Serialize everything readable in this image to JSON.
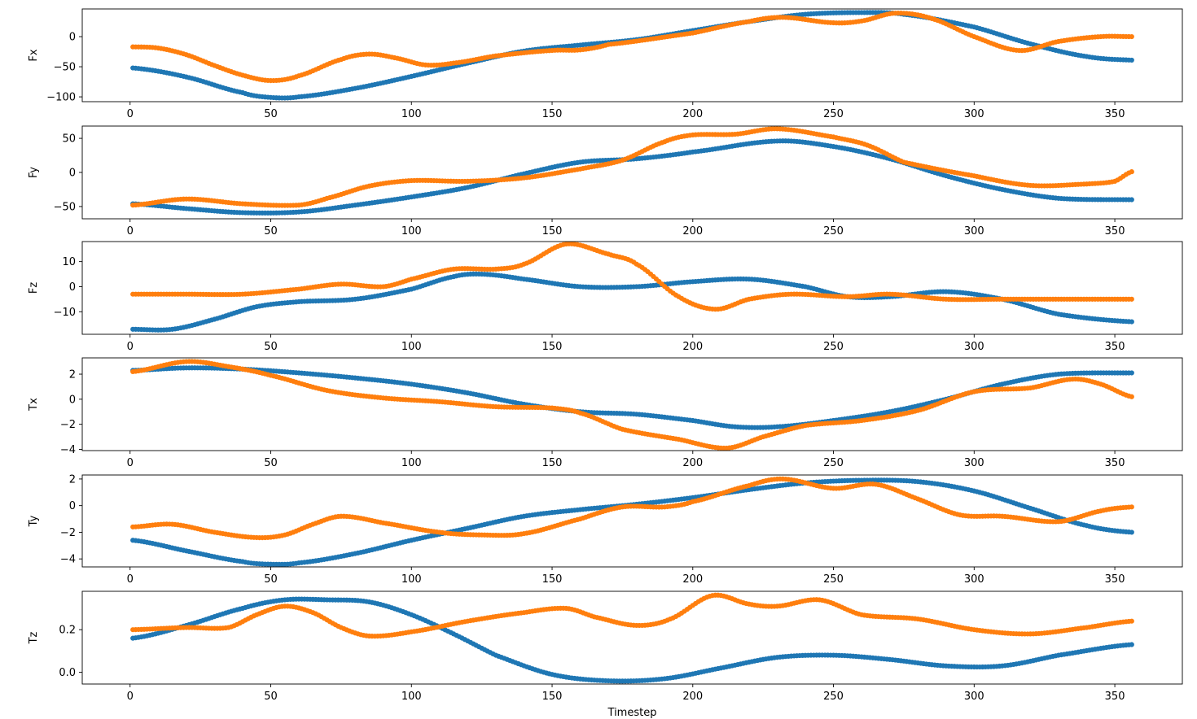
{
  "chart_data": [
    {
      "type": "scatter",
      "ylabel": "Fx",
      "xlabel": "",
      "xlim": [
        -17,
        374
      ],
      "ylim": [
        -108,
        46
      ],
      "xticks": [
        0,
        50,
        100,
        150,
        200,
        250,
        300,
        350
      ],
      "yticks": [
        -100,
        -50,
        0
      ],
      "series": [
        {
          "color": "#1f77b4",
          "x": [
            1,
            20,
            40,
            50,
            60,
            80,
            100,
            120,
            140,
            160,
            180,
            200,
            220,
            240,
            260,
            275,
            300,
            320,
            340,
            356
          ],
          "y": [
            -52,
            -67,
            -93,
            -101,
            -100,
            -86,
            -66,
            -44,
            -24,
            -14,
            -5,
            10,
            25,
            37,
            40,
            37,
            16,
            -12,
            -33,
            -39
          ]
        },
        {
          "color": "#ff7f0e",
          "x": [
            1,
            10,
            20,
            30,
            40,
            50,
            60,
            75,
            85,
            95,
            105,
            115,
            130,
            150,
            160,
            170,
            200,
            220,
            232,
            250,
            260,
            272,
            285,
            300,
            316,
            330,
            345,
            356
          ],
          "y": [
            -17,
            -19,
            -30,
            -48,
            -64,
            -73,
            -65,
            -38,
            -29,
            -36,
            -47,
            -44,
            -32,
            -23,
            -22,
            -13,
            6,
            25,
            32,
            23,
            26,
            39,
            30,
            0,
            -23,
            -8,
            0,
            0
          ]
        }
      ]
    },
    {
      "type": "scatter",
      "ylabel": "Fy",
      "xlabel": "",
      "xlim": [
        -17,
        374
      ],
      "ylim": [
        -68,
        68
      ],
      "xticks": [
        0,
        50,
        100,
        150,
        200,
        250,
        300,
        350
      ],
      "yticks": [
        -50,
        0,
        50
      ],
      "series": [
        {
          "color": "#1f77b4",
          "x": [
            1,
            20,
            40,
            60,
            80,
            100,
            120,
            140,
            160,
            180,
            200,
            230,
            250,
            270,
            290,
            310,
            330,
            356
          ],
          "y": [
            -46,
            -53,
            -59,
            -58,
            -48,
            -36,
            -22,
            -2,
            15,
            20,
            30,
            46,
            38,
            20,
            -5,
            -25,
            -38,
            -40
          ]
        },
        {
          "color": "#ff7f0e",
          "x": [
            1,
            20,
            40,
            60,
            70,
            85,
            100,
            120,
            140,
            160,
            175,
            190,
            200,
            215,
            230,
            250,
            262,
            275,
            300,
            320,
            340,
            350,
            356
          ],
          "y": [
            -48,
            -39,
            -46,
            -48,
            -38,
            -20,
            -12,
            -13,
            -8,
            5,
            18,
            45,
            55,
            56,
            64,
            52,
            40,
            15,
            -5,
            -19,
            -17,
            -13,
            1
          ]
        }
      ]
    },
    {
      "type": "scatter",
      "ylabel": "Fz",
      "xlabel": "",
      "xlim": [
        -17,
        374
      ],
      "ylim": [
        -19,
        18
      ],
      "xticks": [
        0,
        50,
        100,
        150,
        200,
        250,
        300,
        350
      ],
      "yticks": [
        -10,
        0,
        10
      ],
      "series": [
        {
          "color": "#1f77b4",
          "x": [
            1,
            15,
            30,
            45,
            60,
            80,
            100,
            115,
            125,
            140,
            160,
            180,
            200,
            220,
            240,
            255,
            270,
            290,
            310,
            330,
            356
          ],
          "y": [
            -17,
            -17,
            -13,
            -8,
            -6,
            -5,
            -1,
            4,
            5,
            3,
            0,
            0,
            2,
            3,
            0,
            -4,
            -4,
            -2,
            -5,
            -11,
            -14
          ]
        },
        {
          "color": "#ff7f0e",
          "x": [
            1,
            20,
            40,
            60,
            75,
            90,
            100,
            115,
            130,
            140,
            155,
            170,
            180,
            195,
            208,
            220,
            235,
            255,
            270,
            290,
            310,
            330,
            356
          ],
          "y": [
            -3,
            -3,
            -3,
            -1,
            1,
            0,
            3,
            7,
            7,
            9,
            17,
            13,
            9,
            -4,
            -9,
            -5,
            -3,
            -4,
            -3,
            -5,
            -5,
            -5,
            -5
          ]
        }
      ]
    },
    {
      "type": "scatter",
      "ylabel": "Tx",
      "xlabel": "",
      "xlim": [
        -17,
        374
      ],
      "ylim": [
        -4.1,
        3.3
      ],
      "xticks": [
        0,
        50,
        100,
        150,
        200,
        250,
        300,
        350
      ],
      "yticks": [
        -4,
        -2,
        0,
        2
      ],
      "series": [
        {
          "color": "#1f77b4",
          "x": [
            1,
            20,
            40,
            60,
            80,
            100,
            120,
            140,
            160,
            180,
            200,
            215,
            230,
            250,
            270,
            290,
            310,
            330,
            356
          ],
          "y": [
            2.3,
            2.5,
            2.4,
            2.1,
            1.7,
            1.2,
            0.5,
            -0.4,
            -1.0,
            -1.2,
            -1.7,
            -2.2,
            -2.2,
            -1.7,
            -1.0,
            0.0,
            1.2,
            2.0,
            2.1
          ]
        },
        {
          "color": "#ff7f0e",
          "x": [
            1,
            20,
            35,
            50,
            70,
            90,
            110,
            130,
            150,
            160,
            175,
            195,
            212,
            225,
            240,
            260,
            280,
            300,
            320,
            335,
            345,
            356
          ],
          "y": [
            2.2,
            3.0,
            2.6,
            1.9,
            0.7,
            0.1,
            -0.2,
            -0.6,
            -0.7,
            -1.1,
            -2.4,
            -3.2,
            -3.9,
            -3.0,
            -2.1,
            -1.7,
            -0.9,
            0.6,
            0.9,
            1.6,
            1.2,
            0.2
          ]
        }
      ]
    },
    {
      "type": "scatter",
      "ylabel": "Ty",
      "xlabel": "",
      "xlim": [
        -17,
        374
      ],
      "ylim": [
        -4.6,
        2.3
      ],
      "xticks": [
        0,
        50,
        100,
        150,
        200,
        250,
        300,
        350
      ],
      "yticks": [
        -4,
        -2,
        0,
        2
      ],
      "series": [
        {
          "color": "#1f77b4",
          "x": [
            1,
            20,
            40,
            50,
            60,
            80,
            100,
            120,
            140,
            160,
            180,
            200,
            220,
            240,
            260,
            280,
            300,
            320,
            340,
            356
          ],
          "y": [
            -2.6,
            -3.4,
            -4.2,
            -4.4,
            -4.3,
            -3.6,
            -2.6,
            -1.7,
            -0.8,
            -0.3,
            0.1,
            0.6,
            1.2,
            1.7,
            1.9,
            1.8,
            1.1,
            -0.2,
            -1.5,
            -2.0
          ]
        },
        {
          "color": "#ff7f0e",
          "x": [
            1,
            15,
            30,
            45,
            55,
            65,
            75,
            90,
            110,
            125,
            140,
            160,
            175,
            190,
            200,
            220,
            232,
            250,
            265,
            280,
            295,
            310,
            330,
            345,
            356
          ],
          "y": [
            -1.6,
            -1.4,
            -2.0,
            -2.4,
            -2.2,
            -1.4,
            -0.8,
            -1.3,
            -2.0,
            -2.2,
            -2.1,
            -1.0,
            -0.1,
            -0.1,
            0.3,
            1.5,
            2.0,
            1.3,
            1.6,
            0.5,
            -0.7,
            -0.8,
            -1.2,
            -0.4,
            -0.1
          ]
        }
      ]
    },
    {
      "type": "scatter",
      "ylabel": "Tz",
      "xlabel": "Timestep",
      "xlim": [
        -17,
        374
      ],
      "ylim": [
        -0.055,
        0.38
      ],
      "xticks": [
        0,
        50,
        100,
        150,
        200,
        250,
        300,
        350
      ],
      "yticks": [
        0.0,
        0.2
      ],
      "series": [
        {
          "color": "#1f77b4",
          "x": [
            1,
            20,
            40,
            55,
            70,
            85,
            100,
            115,
            130,
            150,
            170,
            190,
            210,
            230,
            250,
            270,
            290,
            310,
            330,
            356
          ],
          "y": [
            0.16,
            0.22,
            0.3,
            0.34,
            0.34,
            0.33,
            0.27,
            0.18,
            0.08,
            -0.01,
            -0.04,
            -0.03,
            0.02,
            0.07,
            0.08,
            0.06,
            0.03,
            0.03,
            0.08,
            0.13
          ]
        },
        {
          "color": "#ff7f0e",
          "x": [
            1,
            20,
            35,
            45,
            55,
            65,
            75,
            85,
            100,
            120,
            140,
            155,
            165,
            180,
            192,
            207,
            220,
            230,
            245,
            260,
            280,
            300,
            320,
            340,
            356
          ],
          "y": [
            0.2,
            0.21,
            0.21,
            0.27,
            0.31,
            0.28,
            0.21,
            0.17,
            0.19,
            0.24,
            0.28,
            0.3,
            0.26,
            0.22,
            0.25,
            0.36,
            0.32,
            0.31,
            0.34,
            0.27,
            0.25,
            0.2,
            0.18,
            0.21,
            0.24
          ]
        }
      ]
    }
  ]
}
